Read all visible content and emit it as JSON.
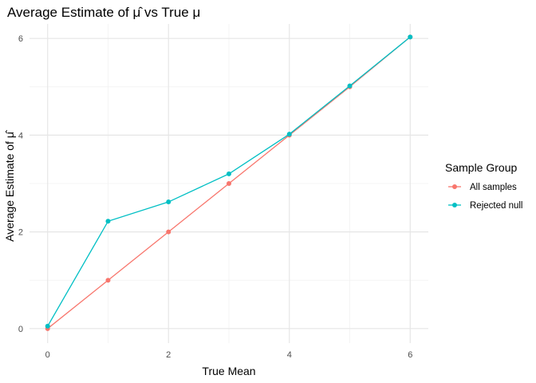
{
  "chart_data": {
    "type": "line",
    "title": "Average Estimate of μ̂ vs True μ",
    "xlabel": "True Mean",
    "ylabel": "Average Estimate of μ̂",
    "x": [
      0,
      1,
      2,
      3,
      4,
      5,
      6
    ],
    "xlim": [
      -0.3,
      6.3
    ],
    "ylim": [
      -0.3,
      6.3
    ],
    "x_ticks": [
      0,
      2,
      4,
      6
    ],
    "y_ticks": [
      0,
      2,
      4,
      6
    ],
    "grid": true,
    "legend": {
      "title": "Sample Group",
      "position": "right"
    },
    "series": [
      {
        "name": "All samples",
        "color": "#F8766D",
        "values": [
          0.0,
          1.0,
          2.0,
          3.0,
          4.0,
          5.0,
          6.03
        ]
      },
      {
        "name": "Rejected null",
        "color": "#00BFC4",
        "values": [
          0.05,
          2.22,
          2.62,
          3.2,
          4.02,
          5.02,
          6.03
        ]
      }
    ]
  }
}
